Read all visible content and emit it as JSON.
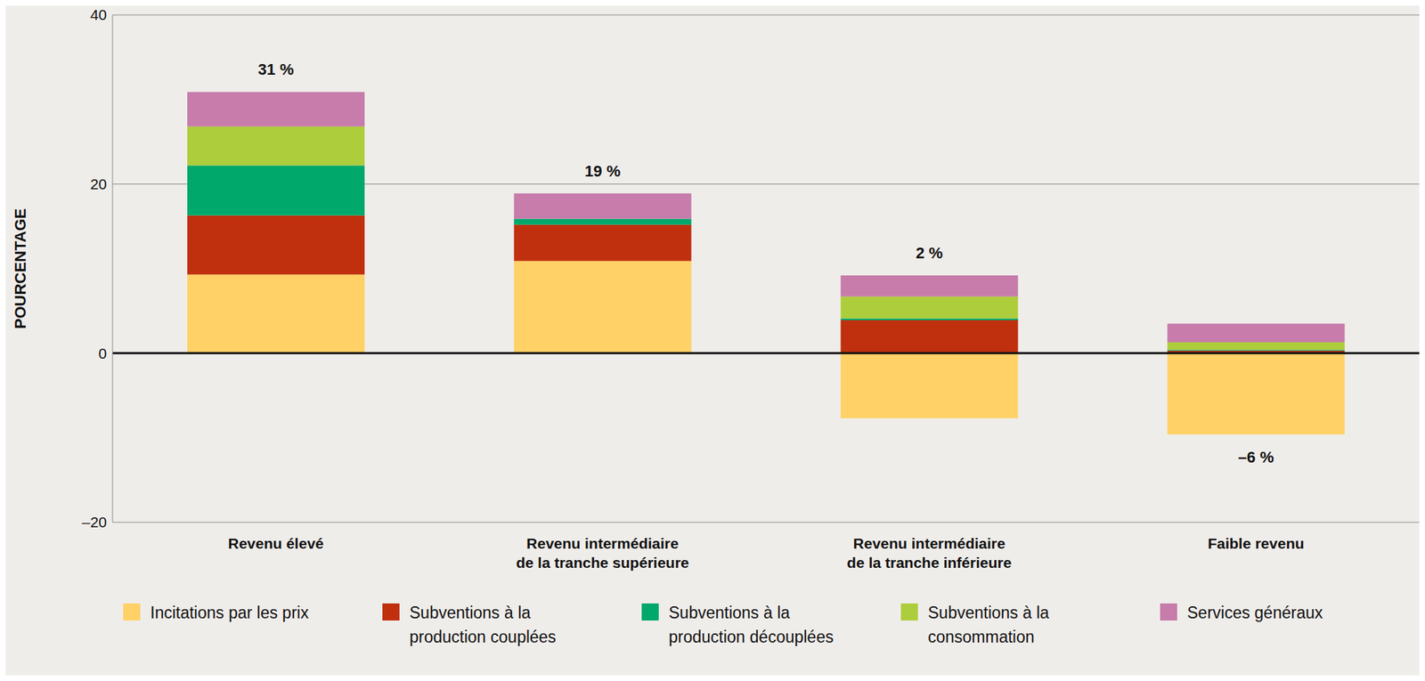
{
  "chart_data": {
    "type": "bar",
    "stacked": true,
    "grid": true,
    "legend": "bottom",
    "y_label": "POURCENTAGE",
    "categories": [
      "Revenu élevé",
      "Revenu intermédiaire\nde la tranche supérieure",
      "Revenu intermédiaire\nde la tranche inférieure",
      "Faible revenu"
    ],
    "series": [
      {
        "name": "Incitations par les prix",
        "color": "#FFD166",
        "values": [
          9.3,
          10.9,
          -7.7,
          -9.6
        ]
      },
      {
        "name": "Subventions à la\nproduction couplées",
        "color": "#C0300E",
        "values": [
          7.0,
          4.3,
          3.9,
          0.3
        ]
      },
      {
        "name": "Subventions à la\nproduction découplées",
        "color": "#00A86B",
        "values": [
          5.9,
          0.7,
          0.2,
          0.1
        ]
      },
      {
        "name": "Subventions à la\nconsommation",
        "color": "#AECD3C",
        "values": [
          4.6,
          0,
          2.6,
          0.9
        ]
      },
      {
        "name": "Services généraux",
        "color": "#C77CAB",
        "values": [
          4.1,
          3.0,
          2.5,
          2.2
        ]
      }
    ],
    "totals": [
      31,
      19,
      2,
      -6
    ],
    "total_labels": [
      "31 %",
      "19 %",
      "2 %",
      "–6 %"
    ],
    "ylim": [
      -20,
      40
    ],
    "yticks": [
      {
        "value": -20,
        "label": "–20"
      },
      0,
      20,
      40
    ]
  }
}
